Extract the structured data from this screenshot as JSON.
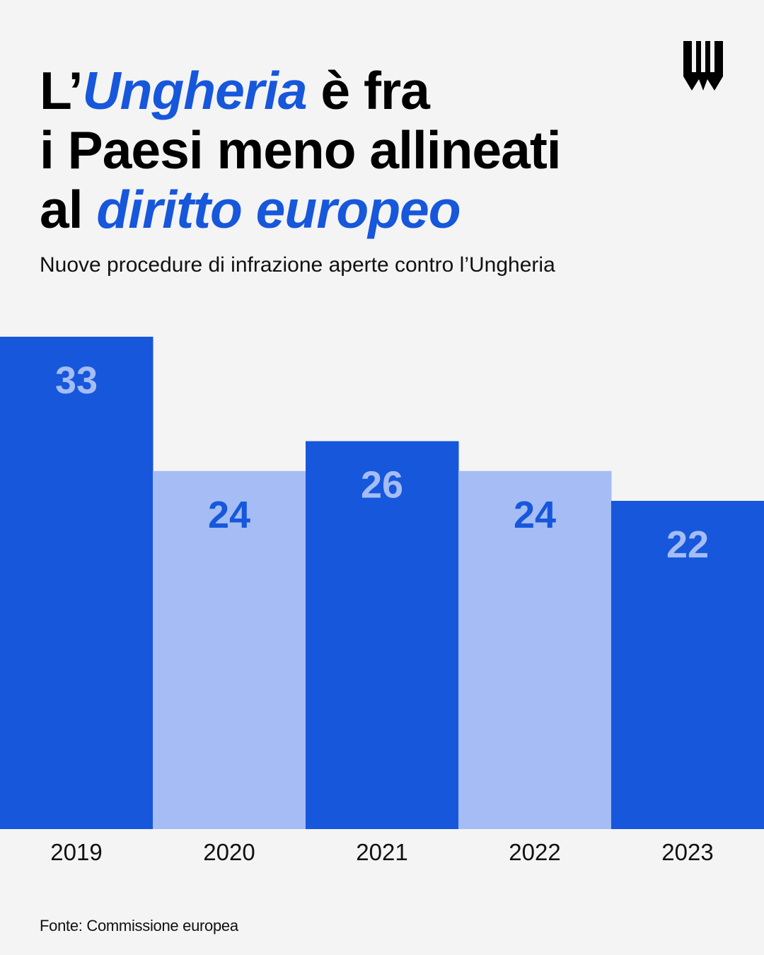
{
  "header": {
    "title_part1": "L’",
    "title_part2": "Ungheria",
    "title_part3": " è fra",
    "title_part4": "i Paesi meno allineati",
    "title_part5": "al ",
    "title_part6": "diritto europeo",
    "subtitle": "Nuove procedure di infrazione aperte contro l’Ungheria"
  },
  "footer": {
    "source": "Fonte: Commissione europea"
  },
  "colors": {
    "accent": "#1657dc",
    "light": "#a5bdf4",
    "background": "#f4f4f4"
  },
  "logo": {
    "icon": "publisher-logo-icon"
  },
  "chart_data": {
    "type": "bar",
    "categories": [
      "2019",
      "2020",
      "2021",
      "2022",
      "2023"
    ],
    "values": [
      33,
      24,
      26,
      24,
      22
    ],
    "title": "",
    "xlabel": "",
    "ylabel": "",
    "ylim": [
      0,
      33
    ],
    "grid": false,
    "legend": "none"
  }
}
